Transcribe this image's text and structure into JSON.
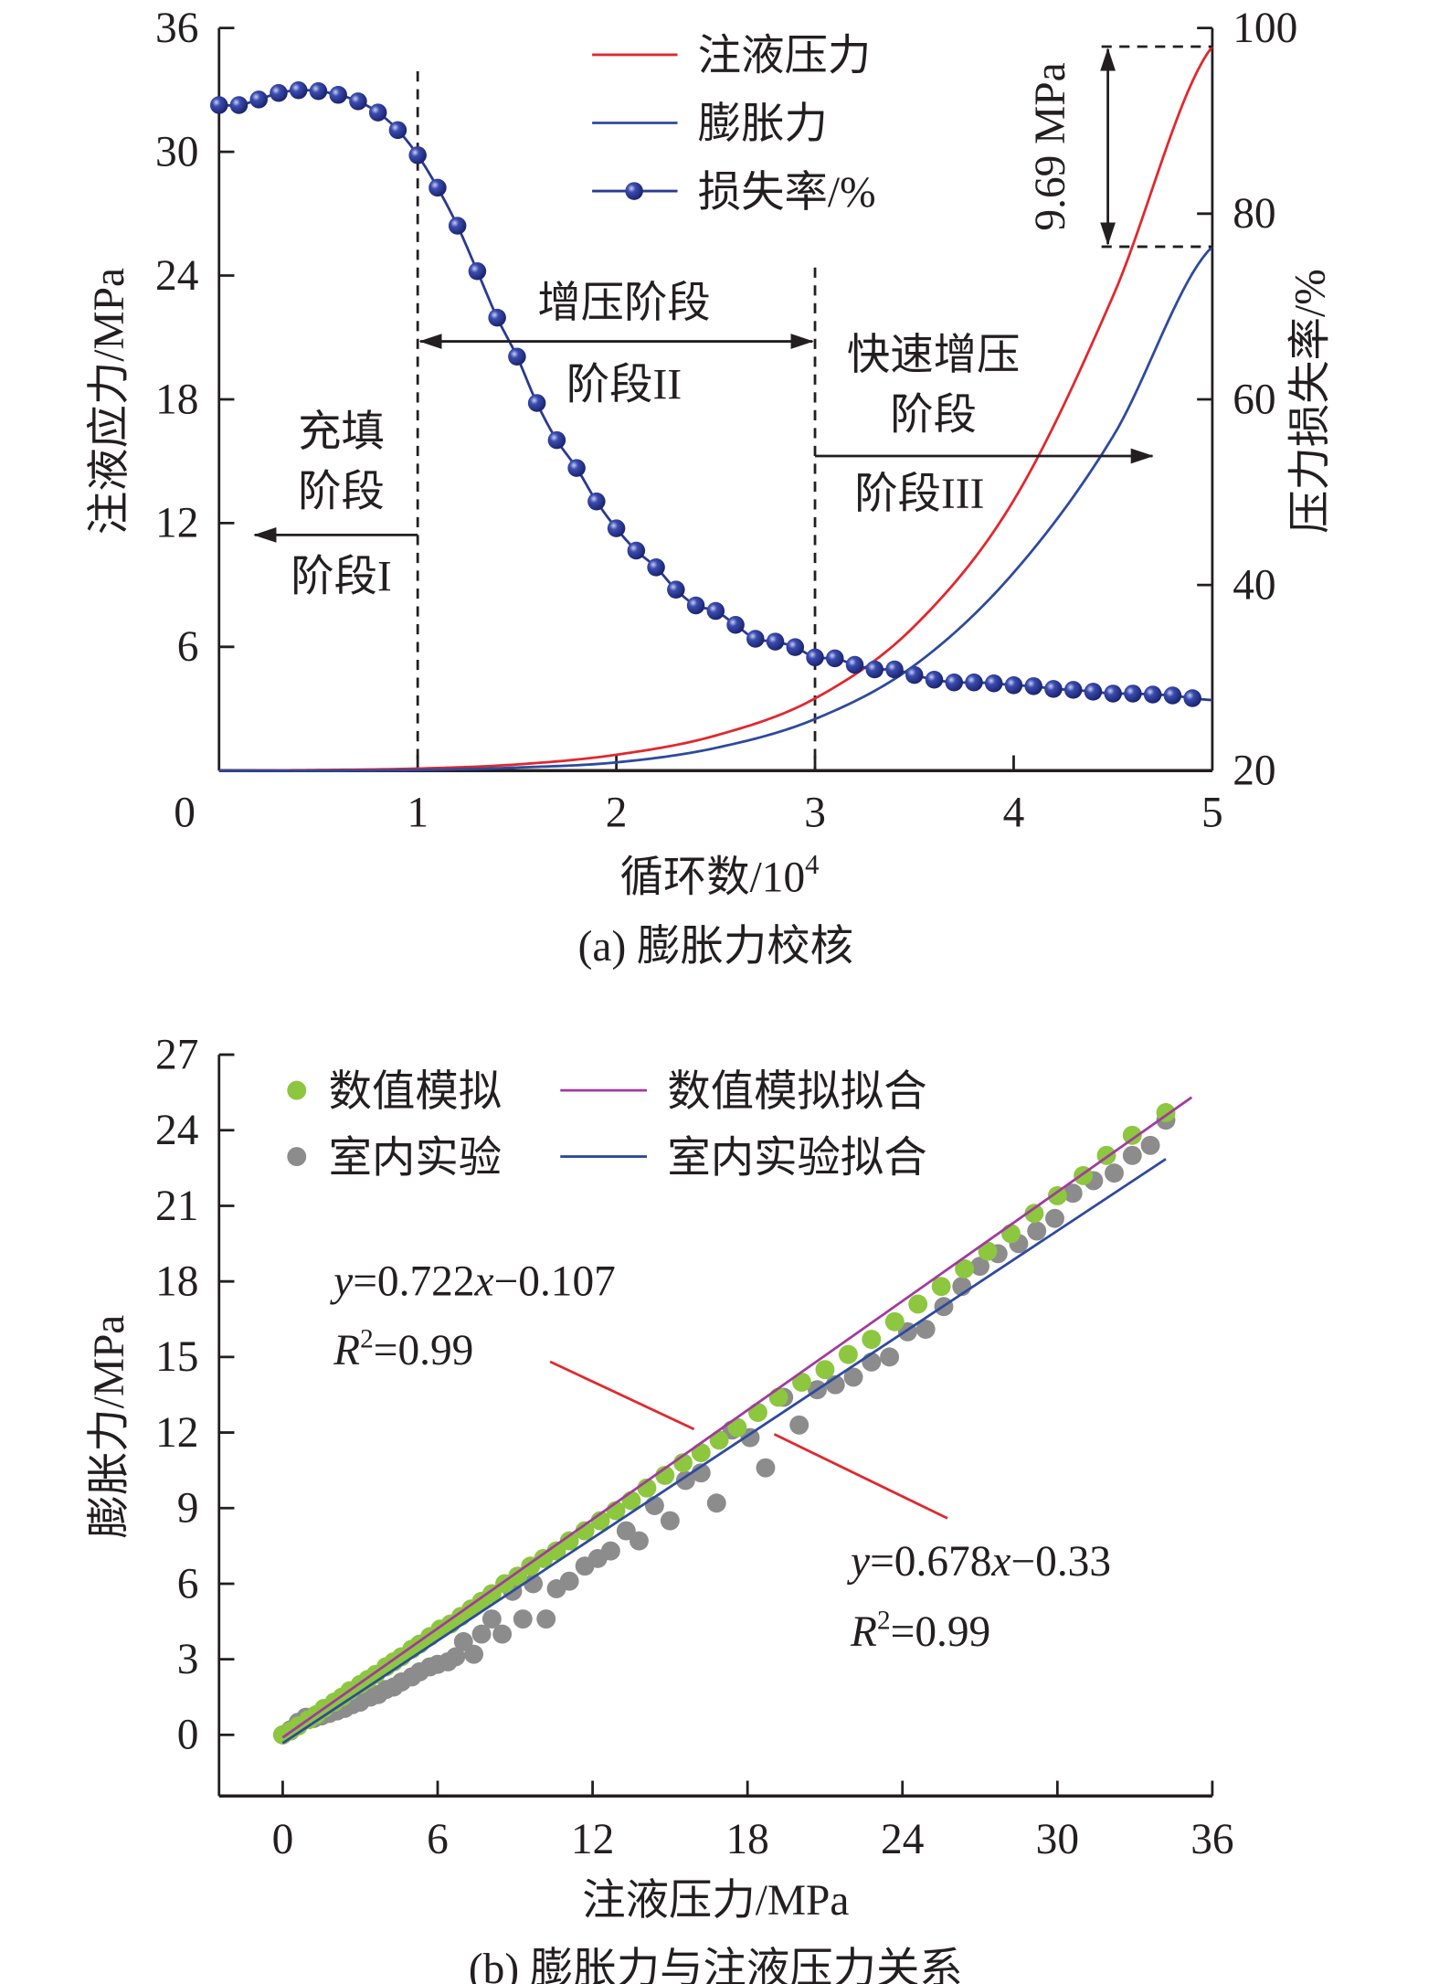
{
  "chart_data": [
    {
      "type": "line",
      "caption": "(a) 膨胀力校核",
      "xlabel": "循环数/10",
      "xlabel_sup": "4",
      "ylabel_left": "注液应力/MPa",
      "ylabel_right": "压力损失率/%",
      "xlim": [
        0,
        5
      ],
      "ylim_left": [
        0,
        36
      ],
      "ylim_right": [
        20,
        100
      ],
      "x_ticks": [
        0,
        1,
        2,
        3,
        4,
        5
      ],
      "y_left_ticks": [
        6,
        12,
        18,
        24,
        30,
        36
      ],
      "y_right_ticks": [
        20,
        40,
        60,
        80,
        100
      ],
      "grid": false,
      "legend_position": "top-center",
      "series": [
        {
          "name": "注液压力",
          "axis": "left",
          "color": "#e0282e",
          "x": [
            0,
            0.5,
            1,
            1.5,
            2,
            2.5,
            3,
            3.5,
            4,
            4.5,
            5
          ],
          "values": [
            0,
            0.03,
            0.1,
            0.3,
            0.77,
            1.7,
            3.5,
            7.0,
            13.1,
            23.0,
            35.1
          ]
        },
        {
          "name": "膨胀力",
          "axis": "left",
          "color": "#2e4a9e",
          "x": [
            0,
            0.5,
            1,
            1.5,
            2,
            2.5,
            3,
            3.5,
            4,
            4.5,
            5
          ],
          "values": [
            0,
            0,
            0.03,
            0.15,
            0.4,
            1.1,
            2.5,
            5.1,
            9.6,
            16.2,
            25.4
          ]
        },
        {
          "name": "损失率/%",
          "axis": "right",
          "color": "#2b3990",
          "markers": true,
          "x_start": 0,
          "x_step": 0.1,
          "values": [
            91.7,
            91.7,
            92.3,
            93.0,
            93.3,
            93.2,
            92.8,
            92.1,
            90.9,
            89.0,
            86.3,
            82.8,
            78.7,
            73.8,
            68.8,
            64.6,
            59.6,
            55.6,
            52.6,
            49.0,
            46.1,
            43.7,
            41.9,
            39.5,
            37.8,
            37.2,
            35.7,
            34.2,
            33.9,
            33.3,
            32.2,
            32.1,
            31.4,
            30.9,
            30.9,
            30.3,
            29.8,
            29.5,
            29.5,
            29.4,
            29.2,
            29.1,
            28.8,
            28.7,
            28.5,
            28.3,
            28.3,
            28.2,
            28.1,
            27.8,
            27.6
          ]
        }
      ],
      "annotations": {
        "difference": "9.69 MPa",
        "difference_between": [
          35.1,
          25.4
        ],
        "stage_boundaries": [
          1,
          3
        ],
        "stage1": {
          "title_line1": "充填",
          "title_line2": "阶段",
          "label": "阶段I"
        },
        "stage2": {
          "title": "增压阶段",
          "label": "阶段II"
        },
        "stage3": {
          "title_line1": "快速增压",
          "title_line2": "阶段",
          "label": "阶段III"
        }
      }
    },
    {
      "type": "scatter",
      "caption": "(b) 膨胀力与注液压力关系",
      "xlabel": "注液压力/MPa",
      "ylabel": "膨胀力/MPa",
      "xlim": [
        -2.5,
        36
      ],
      "ylim": [
        -2.5,
        27
      ],
      "x_ticks": [
        0,
        6,
        12,
        18,
        24,
        30,
        36
      ],
      "y_ticks": [
        0,
        3,
        6,
        9,
        12,
        15,
        18,
        21,
        24,
        27
      ],
      "grid": false,
      "legend_position": "top-left",
      "series": [
        {
          "name": "数值模拟",
          "color": "#8dc63f",
          "points": [
            [
              0,
              0
            ],
            [
              0.3,
              0.15
            ],
            [
              0.6,
              0.35
            ],
            [
              1.0,
              0.6
            ],
            [
              1.3,
              0.8
            ],
            [
              1.6,
              1.05
            ],
            [
              2.0,
              1.3
            ],
            [
              2.3,
              1.5
            ],
            [
              2.6,
              1.75
            ],
            [
              3.0,
              2.0
            ],
            [
              3.3,
              2.2
            ],
            [
              3.6,
              2.4
            ],
            [
              4.0,
              2.7
            ],
            [
              4.3,
              2.9
            ],
            [
              4.6,
              3.1
            ],
            [
              5.0,
              3.4
            ],
            [
              5.3,
              3.6
            ],
            [
              5.7,
              3.9
            ],
            [
              6.1,
              4.2
            ],
            [
              6.5,
              4.4
            ],
            [
              6.9,
              4.7
            ],
            [
              7.3,
              5.0
            ],
            [
              7.7,
              5.3
            ],
            [
              8.1,
              5.6
            ],
            [
              8.6,
              6.0
            ],
            [
              9.1,
              6.3
            ],
            [
              9.6,
              6.7
            ],
            [
              10.1,
              7.0
            ],
            [
              10.6,
              7.3
            ],
            [
              11.1,
              7.7
            ],
            [
              11.7,
              8.1
            ],
            [
              12.3,
              8.5
            ],
            [
              12.9,
              8.9
            ],
            [
              13.5,
              9.3
            ],
            [
              14.1,
              9.8
            ],
            [
              14.8,
              10.3
            ],
            [
              15.5,
              10.8
            ],
            [
              16.2,
              11.2
            ],
            [
              16.9,
              11.7
            ],
            [
              17.6,
              12.2
            ],
            [
              18.4,
              12.8
            ],
            [
              19.2,
              13.4
            ],
            [
              20.1,
              14.0
            ],
            [
              21.0,
              14.5
            ],
            [
              21.9,
              15.1
            ],
            [
              22.8,
              15.7
            ],
            [
              23.7,
              16.4
            ],
            [
              24.6,
              17.1
            ],
            [
              25.5,
              17.8
            ],
            [
              26.4,
              18.5
            ],
            [
              27.3,
              19.2
            ],
            [
              28.2,
              19.9
            ],
            [
              29.1,
              20.7
            ],
            [
              30.0,
              21.4
            ],
            [
              31.0,
              22.2
            ],
            [
              31.9,
              23.0
            ],
            [
              32.9,
              23.8
            ],
            [
              34.2,
              24.7
            ]
          ]
        },
        {
          "name": "室内实验",
          "color": "#8c8c8d",
          "points": [
            [
              0,
              0
            ],
            [
              0.3,
              0.2
            ],
            [
              0.6,
              0.5
            ],
            [
              0.9,
              0.7
            ],
            [
              1.2,
              0.65
            ],
            [
              1.5,
              0.75
            ],
            [
              1.8,
              0.85
            ],
            [
              2.1,
              0.95
            ],
            [
              2.4,
              1.05
            ],
            [
              2.7,
              1.2
            ],
            [
              3.0,
              1.3
            ],
            [
              3.4,
              1.5
            ],
            [
              3.7,
              1.6
            ],
            [
              4.0,
              1.8
            ],
            [
              4.3,
              1.9
            ],
            [
              4.6,
              2.1
            ],
            [
              5.0,
              2.3
            ],
            [
              5.3,
              2.5
            ],
            [
              5.7,
              2.7
            ],
            [
              6.0,
              2.8
            ],
            [
              6.4,
              2.9
            ],
            [
              6.7,
              3.1
            ],
            [
              7.0,
              3.7
            ],
            [
              7.4,
              3.2
            ],
            [
              7.7,
              4.0
            ],
            [
              8.1,
              4.6
            ],
            [
              8.5,
              4.0
            ],
            [
              8.9,
              5.7
            ],
            [
              9.3,
              4.6
            ],
            [
              9.7,
              6.0
            ],
            [
              10.2,
              4.6
            ],
            [
              10.6,
              5.8
            ],
            [
              11.1,
              6.1
            ],
            [
              11.7,
              6.7
            ],
            [
              12.2,
              7.0
            ],
            [
              12.7,
              7.3
            ],
            [
              13.3,
              8.1
            ],
            [
              13.8,
              7.7
            ],
            [
              14.4,
              9.1
            ],
            [
              15.0,
              8.5
            ],
            [
              15.6,
              10.1
            ],
            [
              16.2,
              10.4
            ],
            [
              16.8,
              9.2
            ],
            [
              17.4,
              12.1
            ],
            [
              18.1,
              11.8
            ],
            [
              18.7,
              10.6
            ],
            [
              19.4,
              13.4
            ],
            [
              20.0,
              12.3
            ],
            [
              20.7,
              13.7
            ],
            [
              21.4,
              13.9
            ],
            [
              22.1,
              14.2
            ],
            [
              22.8,
              14.8
            ],
            [
              23.5,
              15.0
            ],
            [
              24.2,
              16.0
            ],
            [
              24.9,
              16.1
            ],
            [
              25.6,
              17.0
            ],
            [
              26.3,
              17.8
            ],
            [
              27.0,
              18.6
            ],
            [
              27.7,
              19.1
            ],
            [
              28.5,
              19.5
            ],
            [
              29.2,
              20.0
            ],
            [
              29.9,
              20.5
            ],
            [
              30.6,
              21.5
            ],
            [
              31.4,
              22.0
            ],
            [
              32.2,
              22.3
            ],
            [
              32.9,
              23.0
            ],
            [
              33.6,
              23.4
            ],
            [
              34.2,
              24.4
            ]
          ]
        }
      ],
      "fits": [
        {
          "name": "数值模拟拟合",
          "color": "#a23aa0",
          "slope": 0.722,
          "intercept": -0.107,
          "x_range": [
            0,
            35.2
          ],
          "equation": {
            "y": "y",
            "rhs": "=0.722",
            "x": "x",
            "tail": "−0.107"
          },
          "r2": {
            "R": "R",
            "sup": "2",
            "rhs": "=0.99"
          }
        },
        {
          "name": "室内实验拟合",
          "color": "#2e4a9e",
          "slope": 0.678,
          "intercept": -0.33,
          "x_range": [
            0,
            34.2
          ],
          "equation": {
            "y": "y",
            "rhs": "=0.678",
            "x": "x",
            "tail": "−0.33"
          },
          "r2": {
            "R": "R",
            "sup": "2",
            "rhs": "=0.99"
          }
        }
      ],
      "leader_color": "#e0282e"
    }
  ]
}
